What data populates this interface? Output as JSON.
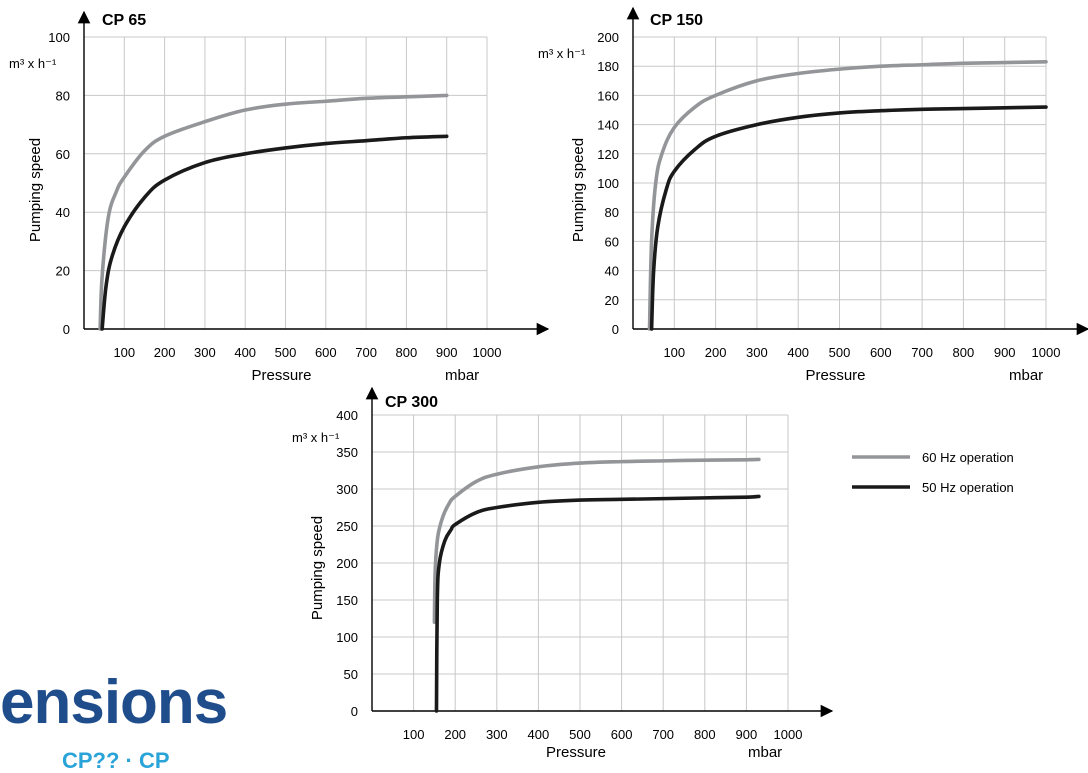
{
  "brand": {
    "text": "ensions",
    "subtext": "CP?? · CP"
  },
  "colors": {
    "series_60hz": "#939598",
    "series_50hz": "#1a1a1a",
    "grid": "#c8c8c8",
    "axis": "#000000",
    "brand": "#1f4d8c",
    "brand_sub": "#2aa4d8"
  },
  "legend": [
    {
      "name": "60 Hz operation",
      "color": "#939598"
    },
    {
      "name": "50 Hz operation",
      "color": "#1a1a1a"
    }
  ],
  "chart_data": [
    {
      "type": "line",
      "title": "CP 65",
      "xlabel": "Pressure",
      "xunit": "mbar",
      "ylabel": "Pumping speed",
      "yunit": "m³ x h⁻¹",
      "xlim": [
        0,
        1000
      ],
      "ylim": [
        0,
        100
      ],
      "xticks": [
        100,
        200,
        300,
        400,
        500,
        600,
        700,
        800,
        900,
        1000
      ],
      "yticks": [
        0,
        20,
        40,
        60,
        80,
        100
      ],
      "grid": true,
      "series": [
        {
          "name": "60 Hz operation",
          "x": [
            40,
            45,
            60,
            80,
            100,
            150,
            200,
            300,
            400,
            500,
            600,
            700,
            800,
            900
          ],
          "y": [
            0,
            18,
            38,
            47,
            52,
            61,
            66,
            71,
            75,
            77,
            78,
            79,
            79.5,
            80
          ]
        },
        {
          "name": "50 Hz operation",
          "x": [
            45,
            55,
            70,
            100,
            150,
            200,
            300,
            400,
            500,
            600,
            700,
            800,
            900
          ],
          "y": [
            0,
            15,
            25,
            35,
            45,
            51,
            57,
            60,
            62,
            63.5,
            64.5,
            65.5,
            66
          ]
        }
      ]
    },
    {
      "type": "line",
      "title": "CP 150",
      "xlabel": "Pressure",
      "xunit": "mbar",
      "ylabel": "Pumping speed",
      "yunit": "m³ x h⁻¹",
      "xlim": [
        0,
        1000
      ],
      "ylim": [
        0,
        200
      ],
      "xticks": [
        100,
        200,
        300,
        400,
        500,
        600,
        700,
        800,
        900,
        1000
      ],
      "yticks": [
        0,
        20,
        40,
        60,
        80,
        100,
        120,
        140,
        160,
        180,
        200
      ],
      "grid": true,
      "series": [
        {
          "name": "60 Hz operation",
          "x": [
            40,
            45,
            55,
            70,
            100,
            150,
            200,
            300,
            400,
            500,
            600,
            700,
            800,
            900,
            1000
          ],
          "y": [
            0,
            60,
            100,
            120,
            138,
            152,
            160,
            170,
            175,
            178,
            180,
            181,
            182,
            182.5,
            183
          ]
        },
        {
          "name": "50 Hz operation",
          "x": [
            45,
            50,
            60,
            80,
            100,
            150,
            200,
            300,
            400,
            500,
            600,
            700,
            800,
            900,
            1000
          ],
          "y": [
            0,
            40,
            70,
            95,
            108,
            123,
            132,
            140,
            145,
            148,
            149.5,
            150.5,
            151,
            151.5,
            152
          ]
        }
      ]
    },
    {
      "type": "line",
      "title": "CP 300",
      "xlabel": "Pressure",
      "xunit": "mbar",
      "ylabel": "Pumping speed",
      "yunit": "m³ x h⁻¹",
      "xlim": [
        0,
        1000
      ],
      "ylim": [
        0,
        400
      ],
      "xticks": [
        100,
        200,
        300,
        400,
        500,
        600,
        700,
        800,
        900,
        1000
      ],
      "yticks": [
        0,
        50,
        100,
        150,
        200,
        250,
        300,
        350,
        400
      ],
      "grid": true,
      "series": [
        {
          "name": "60 Hz operation",
          "x": [
            150,
            152,
            158,
            170,
            185,
            200,
            250,
            300,
            400,
            500,
            600,
            700,
            800,
            900,
            930
          ],
          "y": [
            120,
            190,
            235,
            262,
            280,
            290,
            310,
            320,
            330,
            335,
            337,
            338,
            339,
            339.5,
            340
          ]
        },
        {
          "name": "50 Hz operation",
          "x": [
            155,
            157,
            162,
            175,
            190,
            200,
            250,
            300,
            400,
            500,
            600,
            700,
            800,
            900,
            930
          ],
          "y": [
            0,
            150,
            200,
            230,
            245,
            252,
            268,
            275,
            282,
            285,
            286,
            287,
            288,
            289,
            290
          ]
        }
      ]
    }
  ]
}
